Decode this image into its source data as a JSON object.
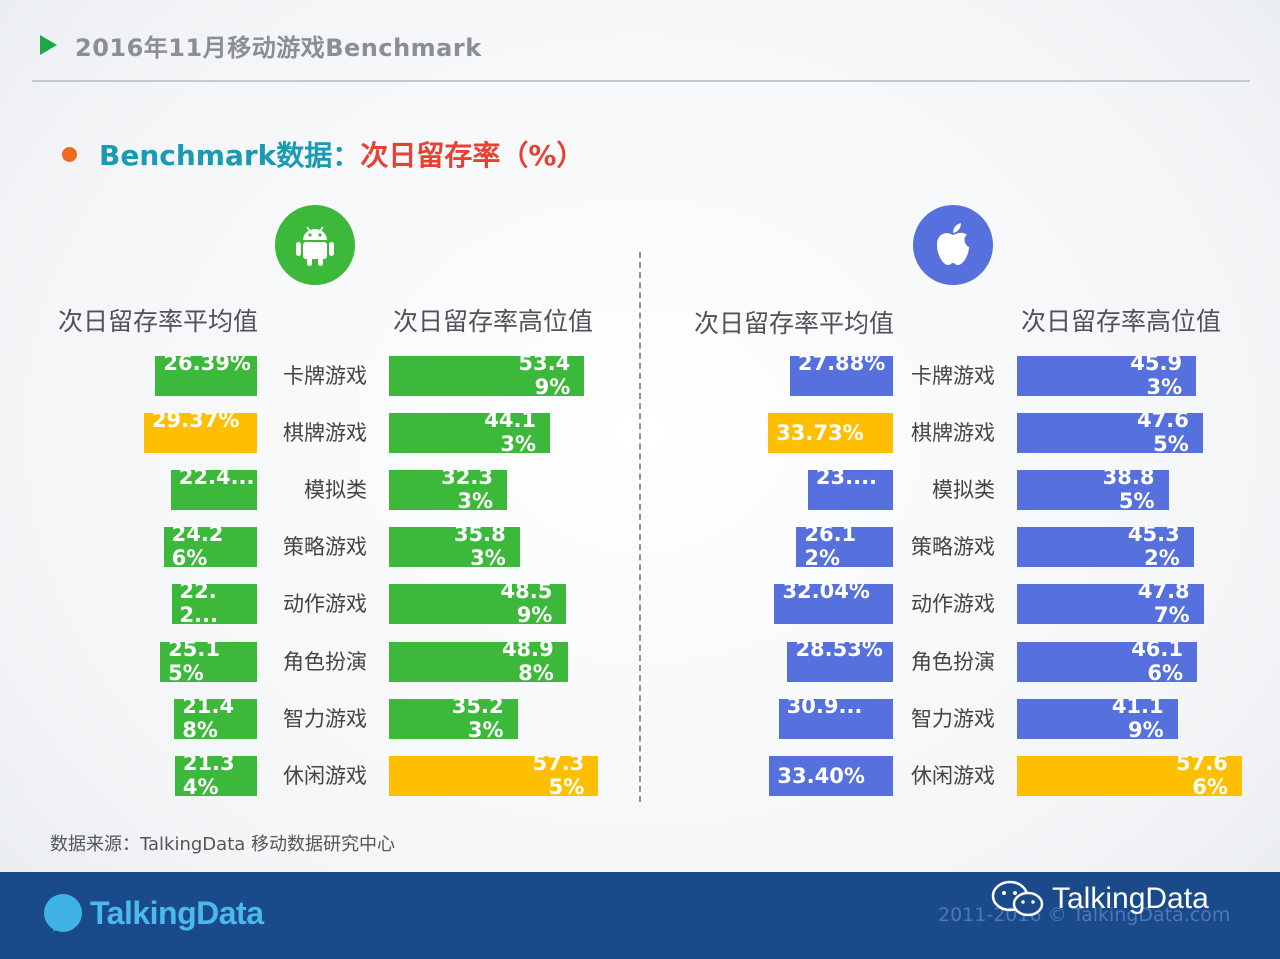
{
  "header": {
    "title": "2016年11月移动游戏Benchmark"
  },
  "subtitle": {
    "part_a": "Benchmark数据：",
    "part_b": "次日留存率（%）"
  },
  "colors": {
    "android": "#3cb83a",
    "ios": "#5670de",
    "highlight": "#fdbf00",
    "accent": "#1a9ab3",
    "title_red": "#e64132",
    "footer": "#1a4a8a"
  },
  "icons": {
    "android": "android-icon",
    "ios": "apple-icon"
  },
  "chart_data": [
    {
      "type": "bar",
      "platform": "android",
      "categories": [
        "卡牌游戏",
        "棋牌游戏",
        "模拟类",
        "策略游戏",
        "动作游戏",
        "角色扮演",
        "智力游戏",
        "休闲游戏"
      ],
      "series": [
        {
          "name": "次日留存率平均值",
          "direction": "left",
          "values": [
            26.39,
            29.37,
            22.4,
            24.26,
            22.2,
            25.15,
            21.48,
            21.34
          ],
          "labels": [
            "26.39%",
            "29.37%",
            "22.4...",
            "24.26%",
            "22.2...",
            "25.15%",
            "21.48%",
            "21.34%"
          ],
          "highlight_index": 1
        },
        {
          "name": "次日留存率高位值",
          "direction": "right",
          "values": [
            53.49,
            44.13,
            32.33,
            35.83,
            48.59,
            48.98,
            35.23,
            57.35
          ],
          "labels": [
            "53.49%",
            "44.13%",
            "32.33%",
            "35.83%",
            "48.59%",
            "48.98%",
            "35.23%",
            "57.35%"
          ],
          "highlight_index": 7
        }
      ]
    },
    {
      "type": "bar",
      "platform": "ios",
      "categories": [
        "卡牌游戏",
        "棋牌游戏",
        "模拟类",
        "策略游戏",
        "动作游戏",
        "角色扮演",
        "智力游戏",
        "休闲游戏"
      ],
      "series": [
        {
          "name": "次日留存率平均值",
          "direction": "left",
          "values": [
            27.88,
            33.73,
            23.0,
            26.12,
            32.04,
            28.53,
            30.9,
            33.4
          ],
          "labels": [
            "27.88%",
            "33.73%",
            "23....",
            "26.12%",
            "32.04%",
            "28.53%",
            "30.9...",
            "33.40%"
          ],
          "highlight_index": 1
        },
        {
          "name": "次日留存率高位值",
          "direction": "right",
          "values": [
            45.93,
            47.65,
            38.85,
            45.32,
            47.87,
            46.16,
            41.19,
            57.66
          ],
          "labels": [
            "45.93%",
            "47.65%",
            "38.85%",
            "45.32%",
            "47.87%",
            "46.16%",
            "41.19%",
            "57.66%"
          ],
          "highlight_index": 7
        }
      ]
    }
  ],
  "source": "数据来源：TalkingData 移动数据研究中心",
  "footer": {
    "logo": "TalkingData",
    "copyright": "2011-2016 © TalkingData.com",
    "watermark": "TalkingData"
  }
}
